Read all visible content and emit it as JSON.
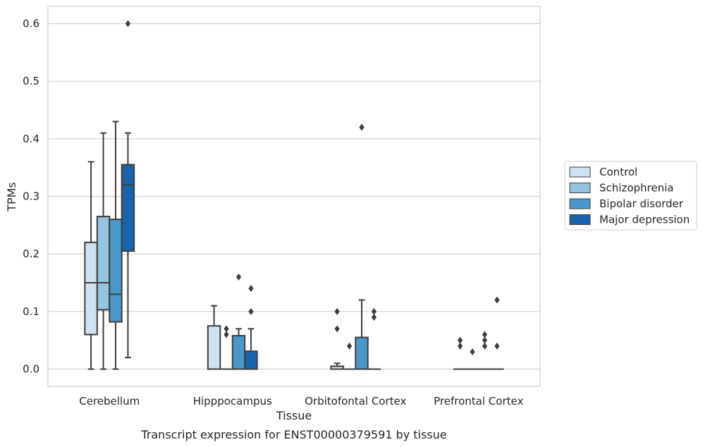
{
  "chart_data": {
    "type": "box",
    "title": "",
    "caption": "Transcript expression for ENST00000379591 by tissue",
    "xlabel": "Tissue",
    "ylabel": "TPMs",
    "ylim": [
      -0.03,
      0.63
    ],
    "yticks": [
      "0.0",
      "0.1",
      "0.2",
      "0.3",
      "0.4",
      "0.5",
      "0.6"
    ],
    "grid": "horizontal",
    "legend_position": "right",
    "categories": [
      "Cerebellum",
      "Hipppocampus",
      "Orbitofontal Cortex",
      "Prefrontal Cortex"
    ],
    "series": [
      {
        "name": "Control",
        "color": "#d0e1f2",
        "boxes": [
          {
            "q1": 0.06,
            "median": 0.15,
            "q3": 0.22,
            "whisker_low": 0.0,
            "whisker_high": 0.36,
            "outliers": []
          },
          {
            "q1": 0.0,
            "median": 0.0,
            "q3": 0.075,
            "whisker_low": 0.0,
            "whisker_high": 0.11,
            "outliers": []
          },
          {
            "q1": 0.0,
            "median": 0.0,
            "q3": 0.005,
            "whisker_low": 0.0,
            "whisker_high": 0.01,
            "outliers": [
              0.07,
              0.1
            ]
          },
          {
            "q1": 0.0,
            "median": 0.0,
            "q3": 0.0,
            "whisker_low": 0.0,
            "whisker_high": 0.0,
            "outliers": [
              0.04,
              0.05
            ]
          }
        ]
      },
      {
        "name": "Schizophrenia",
        "color": "#94c4df",
        "boxes": [
          {
            "q1": 0.103,
            "median": 0.15,
            "q3": 0.265,
            "whisker_low": 0.0,
            "whisker_high": 0.41,
            "outliers": []
          },
          {
            "q1": 0.0,
            "median": 0.0,
            "q3": 0.0,
            "whisker_low": 0.0,
            "whisker_high": 0.0,
            "outliers": [
              0.06,
              0.07
            ]
          },
          {
            "q1": 0.0,
            "median": 0.0,
            "q3": 0.0,
            "whisker_low": 0.0,
            "whisker_high": 0.0,
            "outliers": [
              0.04
            ]
          },
          {
            "q1": 0.0,
            "median": 0.0,
            "q3": 0.0,
            "whisker_low": 0.0,
            "whisker_high": 0.0,
            "outliers": [
              0.03
            ]
          }
        ]
      },
      {
        "name": "Bipolar disorder",
        "color": "#4a98c9",
        "boxes": [
          {
            "q1": 0.082,
            "median": 0.13,
            "q3": 0.26,
            "whisker_low": 0.0,
            "whisker_high": 0.43,
            "outliers": []
          },
          {
            "q1": 0.0,
            "median": 0.0,
            "q3": 0.058,
            "whisker_low": 0.0,
            "whisker_high": 0.07,
            "outliers": [
              0.16
            ]
          },
          {
            "q1": 0.0,
            "median": 0.0,
            "q3": 0.055,
            "whisker_low": 0.0,
            "whisker_high": 0.12,
            "outliers": [
              0.42
            ]
          },
          {
            "q1": 0.0,
            "median": 0.0,
            "q3": 0.0,
            "whisker_low": 0.0,
            "whisker_high": 0.0,
            "outliers": [
              0.04,
              0.05,
              0.06
            ]
          }
        ]
      },
      {
        "name": "Major depression",
        "color": "#1764ab",
        "boxes": [
          {
            "q1": 0.205,
            "median": 0.32,
            "q3": 0.355,
            "whisker_low": 0.02,
            "whisker_high": 0.41,
            "outliers": [
              0.6
            ]
          },
          {
            "q1": 0.0,
            "median": 0.0,
            "q3": 0.031,
            "whisker_low": 0.0,
            "whisker_high": 0.07,
            "outliers": [
              0.1,
              0.14
            ]
          },
          {
            "q1": 0.0,
            "median": 0.0,
            "q3": 0.0,
            "whisker_low": 0.0,
            "whisker_high": 0.0,
            "outliers": [
              0.09,
              0.1
            ]
          },
          {
            "q1": 0.0,
            "median": 0.0,
            "q3": 0.0,
            "whisker_low": 0.0,
            "whisker_high": 0.0,
            "outliers": [
              0.04,
              0.12
            ]
          }
        ]
      }
    ]
  }
}
